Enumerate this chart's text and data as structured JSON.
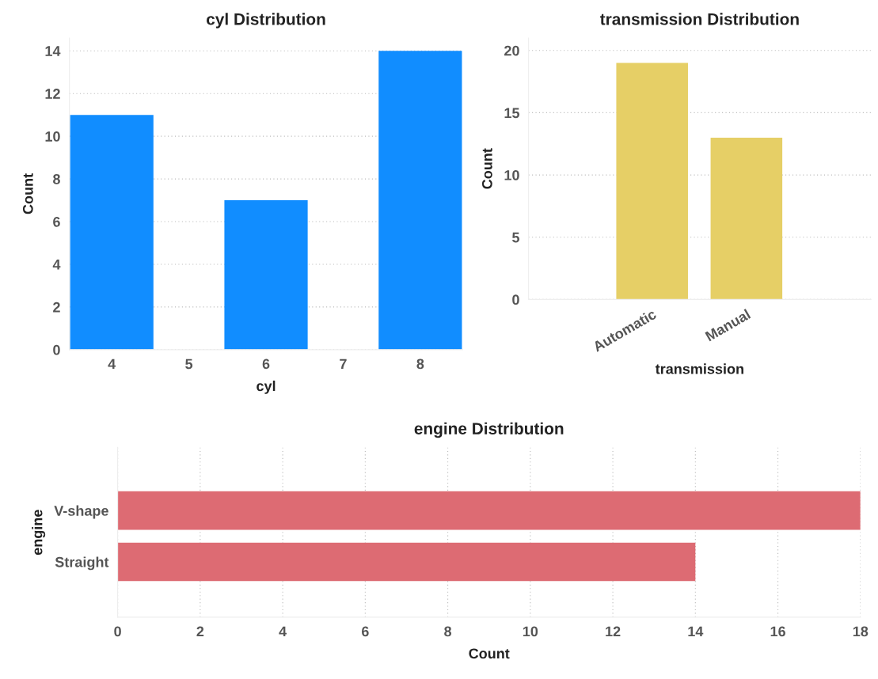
{
  "chart_data": [
    {
      "type": "bar",
      "title": "cyl Distribution",
      "xlabel": "cyl",
      "ylabel": "Count",
      "x": [
        4,
        6,
        8
      ],
      "values": [
        11,
        7,
        14
      ],
      "color": "#118dff",
      "xlim": [
        3.45,
        8.55
      ],
      "xticks": [
        4,
        5,
        6,
        7,
        8
      ],
      "ylim": [
        0,
        14.6
      ],
      "yticks": [
        0,
        2,
        4,
        6,
        8,
        10,
        12,
        14
      ],
      "grid": "y"
    },
    {
      "type": "bar",
      "title": "transmission Distribution",
      "xlabel": "transmission",
      "ylabel": "Count",
      "categories": [
        "Automatic",
        "Manual"
      ],
      "values": [
        19,
        13
      ],
      "color": "#e6cf66",
      "ylim": [
        0,
        21
      ],
      "yticks": [
        0,
        5,
        10,
        15,
        20
      ],
      "grid": "y"
    },
    {
      "type": "bar",
      "orientation": "horizontal",
      "title": "engine Distribution",
      "xlabel": "Count",
      "ylabel": "engine",
      "categories": [
        "V-shape",
        "Straight"
      ],
      "values": [
        18,
        14
      ],
      "color": "#dd6b73",
      "xlim": [
        0,
        18
      ],
      "xticks": [
        0,
        2,
        4,
        6,
        8,
        10,
        12,
        14,
        16,
        18
      ],
      "grid": "x"
    }
  ]
}
